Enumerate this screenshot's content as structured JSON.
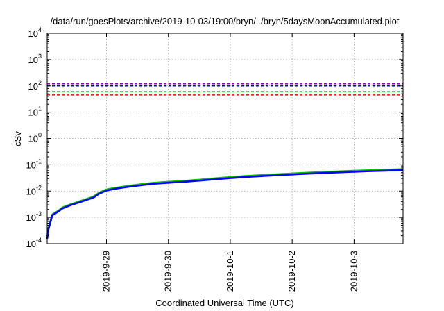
{
  "chart_data": {
    "type": "line",
    "title": "/data/run/goesPlots/archive/2019-10-03/19:00/bryn/../bryn/5daysMoonAccumulated.plot",
    "xlabel": "Coordinated Universal Time (UTC)",
    "ylabel": "cSv",
    "y_scale": "log",
    "ylim": [
      0.0001,
      10000
    ],
    "y_ticks": [
      {
        "value": 0.0001,
        "base": "10",
        "exp": "-4"
      },
      {
        "value": 0.001,
        "base": "10",
        "exp": "-3"
      },
      {
        "value": 0.01,
        "base": "10",
        "exp": "-2"
      },
      {
        "value": 0.1,
        "base": "10",
        "exp": "-1"
      },
      {
        "value": 1,
        "base": "10",
        "exp": "0"
      },
      {
        "value": 10,
        "base": "10",
        "exp": "1"
      },
      {
        "value": 100,
        "base": "10",
        "exp": "2"
      },
      {
        "value": 1000,
        "base": "10",
        "exp": "3"
      },
      {
        "value": 10000,
        "base": "10",
        "exp": "4"
      }
    ],
    "xlim": [
      "2019-09-28T01:00",
      "2019-10-03T19:00"
    ],
    "x_ticks": [
      {
        "value": "2019-09-29T00:00",
        "label": "2019-9-29"
      },
      {
        "value": "2019-09-30T00:00",
        "label": "2019-9-30"
      },
      {
        "value": "2019-10-01T00:00",
        "label": "2019-10-1"
      },
      {
        "value": "2019-10-02T00:00",
        "label": "2019-10-2"
      },
      {
        "value": "2019-10-03T00:00",
        "label": "2019-10-3"
      }
    ],
    "grid": true,
    "reference_lines": [
      {
        "value": 120,
        "color": "#9400d3",
        "style": "dashed"
      },
      {
        "value": 100,
        "color": "#0000ff",
        "style": "dashed"
      },
      {
        "value": 60,
        "color": "#00c000",
        "style": "dashed"
      },
      {
        "value": 45,
        "color": "#ff0000",
        "style": "dashed"
      }
    ],
    "series": [
      {
        "color": "#00c000",
        "x": [
          "2019-09-28T01:00",
          "2019-09-28T01:30",
          "2019-09-28T03:00",
          "2019-09-28T05:00",
          "2019-09-28T07:00",
          "2019-09-28T10:00",
          "2019-09-28T13:00",
          "2019-09-28T16:00",
          "2019-09-28T19:00",
          "2019-09-28T21:00",
          "2019-09-29T00:00",
          "2019-09-29T04:00",
          "2019-09-29T08:00",
          "2019-09-29T12:00",
          "2019-09-29T18:00",
          "2019-09-30T00:00",
          "2019-09-30T06:00",
          "2019-09-30T12:00",
          "2019-09-30T18:00",
          "2019-10-01T00:00",
          "2019-10-01T06:00",
          "2019-10-01T12:00",
          "2019-10-01T18:00",
          "2019-10-02T00:00",
          "2019-10-02T06:00",
          "2019-10-02T12:00",
          "2019-10-02T18:00",
          "2019-10-03T00:00",
          "2019-10-03T06:00",
          "2019-10-03T12:00",
          "2019-10-03T19:00"
        ],
        "values": [
          0.00018,
          0.0004,
          0.0013,
          0.0017,
          0.0024,
          0.0031,
          0.0039,
          0.0049,
          0.0062,
          0.0085,
          0.0115,
          0.0135,
          0.0155,
          0.0175,
          0.0205,
          0.0225,
          0.0245,
          0.027,
          0.0305,
          0.034,
          0.0375,
          0.0405,
          0.0435,
          0.0465,
          0.05,
          0.053,
          0.056,
          0.059,
          0.062,
          0.0645,
          0.068
        ]
      },
      {
        "color": "#0000ff",
        "x": [
          "2019-09-28T01:00",
          "2019-09-28T01:30",
          "2019-09-28T03:00",
          "2019-09-28T05:00",
          "2019-09-28T07:00",
          "2019-09-28T10:00",
          "2019-09-28T13:00",
          "2019-09-28T16:00",
          "2019-09-28T19:00",
          "2019-09-28T21:00",
          "2019-09-29T00:00",
          "2019-09-29T04:00",
          "2019-09-29T08:00",
          "2019-09-29T12:00",
          "2019-09-29T18:00",
          "2019-09-30T00:00",
          "2019-09-30T06:00",
          "2019-09-30T12:00",
          "2019-09-30T18:00",
          "2019-10-01T00:00",
          "2019-10-01T06:00",
          "2019-10-01T12:00",
          "2019-10-01T18:00",
          "2019-10-02T00:00",
          "2019-10-02T06:00",
          "2019-10-02T12:00",
          "2019-10-02T18:00",
          "2019-10-03T00:00",
          "2019-10-03T06:00",
          "2019-10-03T12:00",
          "2019-10-03T19:00"
        ],
        "values": [
          0.00015,
          0.00035,
          0.0012,
          0.0016,
          0.0022,
          0.0029,
          0.0036,
          0.0045,
          0.0057,
          0.0078,
          0.0105,
          0.0125,
          0.0143,
          0.016,
          0.0188,
          0.0207,
          0.0225,
          0.0249,
          0.028,
          0.0312,
          0.0344,
          0.0372,
          0.0399,
          0.0427,
          0.046,
          0.0487,
          0.0514,
          0.0542,
          0.057,
          0.0593,
          0.0625
        ]
      }
    ]
  }
}
